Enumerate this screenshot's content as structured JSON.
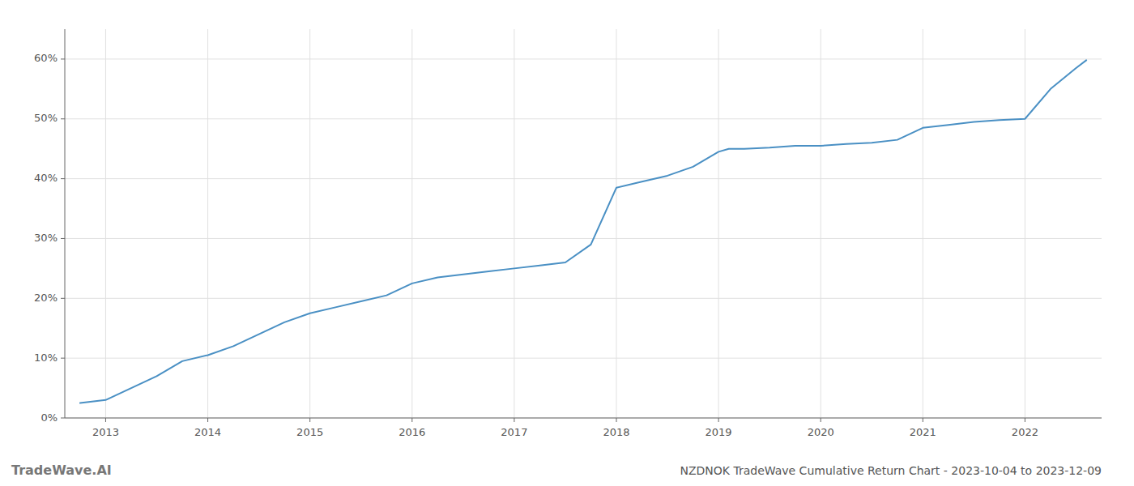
{
  "chart_data": {
    "type": "line",
    "title": "NZDNOK TradeWave Cumulative Return Chart - 2023-10-04 to 2023-12-09",
    "annotations": [
      "TradeWave.AI"
    ],
    "x": [
      2012.75,
      2013.0,
      2013.25,
      2013.5,
      2013.75,
      2014.0,
      2014.25,
      2014.5,
      2014.75,
      2015.0,
      2015.25,
      2015.5,
      2015.75,
      2016.0,
      2016.25,
      2016.5,
      2016.75,
      2017.0,
      2017.25,
      2017.5,
      2017.75,
      2018.0,
      2018.25,
      2018.5,
      2018.75,
      2019.0,
      2019.1,
      2019.25,
      2019.5,
      2019.75,
      2020.0,
      2020.25,
      2020.5,
      2020.75,
      2021.0,
      2021.25,
      2021.5,
      2021.75,
      2022.0,
      2022.25,
      2022.5,
      2022.6
    ],
    "values": [
      2.5,
      3.0,
      5.0,
      7.0,
      9.5,
      10.5,
      12.0,
      14.0,
      16.0,
      17.5,
      18.5,
      19.5,
      20.5,
      22.5,
      23.5,
      24.0,
      24.5,
      25.0,
      25.5,
      26.0,
      29.0,
      38.5,
      39.5,
      40.5,
      42.0,
      44.5,
      45.0,
      45.0,
      45.2,
      45.5,
      45.5,
      45.8,
      46.0,
      46.5,
      48.5,
      49.0,
      49.5,
      49.8,
      50.0,
      55.0,
      58.5,
      59.8
    ],
    "color": "#4a90c4",
    "xlim": [
      2012.6,
      2022.75
    ],
    "ylim": [
      0,
      65
    ],
    "xticks": [
      2013,
      2014,
      2015,
      2016,
      2017,
      2018,
      2019,
      2020,
      2021,
      2022
    ],
    "yticks": [
      {
        "value": 0,
        "label": "0%"
      },
      {
        "value": 10,
        "label": "10%"
      },
      {
        "value": 20,
        "label": "20%"
      },
      {
        "value": 30,
        "label": "30%"
      },
      {
        "value": 40,
        "label": "40%"
      },
      {
        "value": 50,
        "label": "50%"
      },
      {
        "value": 60,
        "label": "60%"
      }
    ],
    "grid": true
  }
}
